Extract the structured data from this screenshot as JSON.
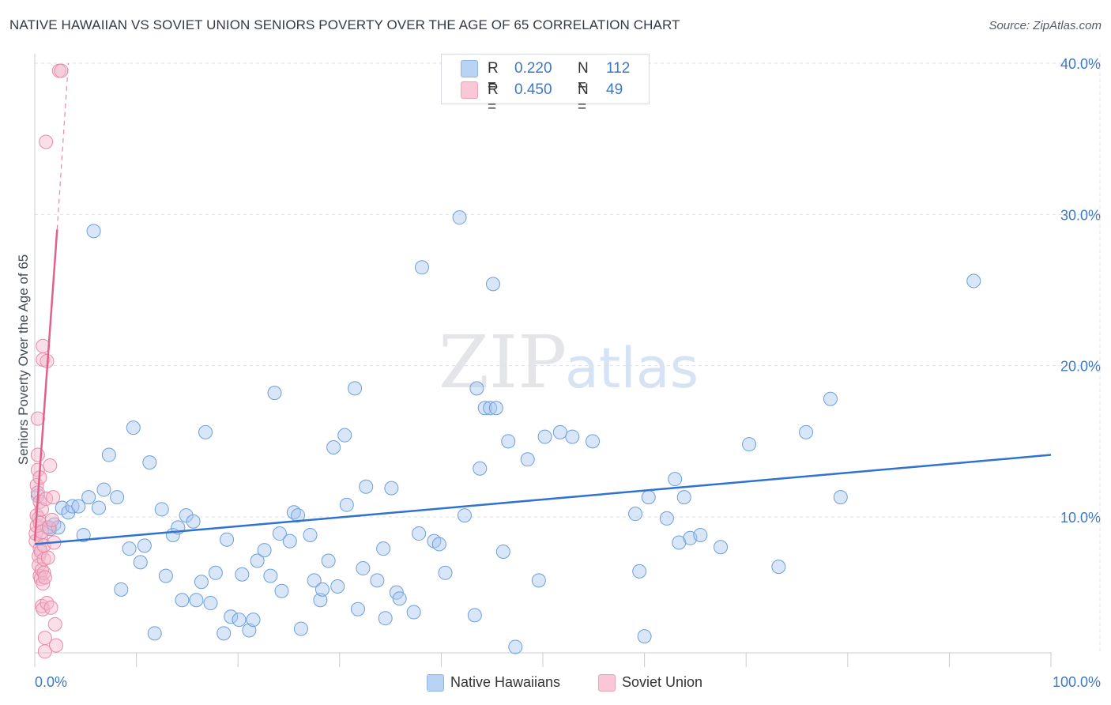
{
  "header": {
    "title": "NATIVE HAWAIIAN VS SOVIET UNION SENIORS POVERTY OVER THE AGE OF 65 CORRELATION CHART",
    "source": "Source: ZipAtlas.com"
  },
  "legend": {
    "rows": [
      {
        "r_label": "R =",
        "r_value": "0.220",
        "n_label": "N =",
        "n_value": "112"
      },
      {
        "r_label": "R =",
        "r_value": "0.450",
        "n_label": "N =",
        "n_value": "49"
      }
    ]
  },
  "colors": {
    "blue_fill": "#a9c8f0",
    "blue_stroke": "#6d9fdc",
    "blue_line": "#2f72cf",
    "pink_fill": "#f5b8cb",
    "pink_stroke": "#e88aa6",
    "pink_line": "#e0628b",
    "tick_text": "#3d78c7",
    "grid": "#dde1e6"
  },
  "chart_data": {
    "type": "scatter",
    "title": "NATIVE HAWAIIAN VS SOVIET UNION SENIORS POVERTY OVER THE AGE OF 65 CORRELATION CHART",
    "xlabel": "",
    "ylabel": "Seniors Poverty Over the Age of 65",
    "xlim": [
      0,
      100
    ],
    "ylim": [
      0,
      41.5
    ],
    "x_tick_labels": [
      "0.0%",
      "100.0%"
    ],
    "y_ticks": [
      10,
      20,
      30,
      40
    ],
    "y_tick_labels": [
      "10.0%",
      "20.0%",
      "30.0%",
      "40.0%"
    ],
    "grid": true,
    "legend_position": "bottom",
    "watermark": "ZIPatlas",
    "series": [
      {
        "name": "Native Hawaiians",
        "R": 0.22,
        "N": 112,
        "trend": {
          "x": [
            0,
            100
          ],
          "y": [
            8.2,
            14.1
          ]
        },
        "points": [
          [
            0.3,
            11.4
          ],
          [
            1.2,
            9.3
          ],
          [
            1.5,
            9.2
          ],
          [
            1.9,
            9.5
          ],
          [
            2.3,
            9.3
          ],
          [
            2.7,
            10.6
          ],
          [
            3.3,
            10.3
          ],
          [
            3.7,
            10.7
          ],
          [
            4.3,
            10.7
          ],
          [
            4.8,
            8.8
          ],
          [
            5.3,
            11.3
          ],
          [
            5.8,
            28.9
          ],
          [
            6.3,
            10.6
          ],
          [
            6.8,
            11.8
          ],
          [
            7.3,
            14.1
          ],
          [
            8.1,
            11.3
          ],
          [
            8.5,
            5.2
          ],
          [
            9.3,
            7.9
          ],
          [
            9.7,
            15.9
          ],
          [
            10.4,
            7.0
          ],
          [
            10.8,
            8.1
          ],
          [
            11.3,
            13.6
          ],
          [
            11.8,
            2.3
          ],
          [
            12.5,
            10.5
          ],
          [
            12.9,
            6.1
          ],
          [
            13.6,
            8.8
          ],
          [
            14.1,
            9.3
          ],
          [
            14.5,
            4.5
          ],
          [
            14.9,
            10.1
          ],
          [
            15.6,
            9.7
          ],
          [
            15.9,
            4.5
          ],
          [
            16.4,
            5.7
          ],
          [
            16.8,
            15.6
          ],
          [
            17.3,
            4.3
          ],
          [
            17.8,
            6.3
          ],
          [
            18.6,
            2.3
          ],
          [
            18.9,
            8.5
          ],
          [
            19.3,
            3.4
          ],
          [
            20.1,
            3.2
          ],
          [
            20.4,
            6.2
          ],
          [
            21.1,
            2.5
          ],
          [
            21.5,
            3.2
          ],
          [
            21.9,
            7.1
          ],
          [
            22.6,
            7.8
          ],
          [
            23.2,
            6.1
          ],
          [
            23.6,
            18.2
          ],
          [
            24.1,
            8.9
          ],
          [
            24.3,
            5.1
          ],
          [
            25.1,
            8.4
          ],
          [
            25.5,
            10.3
          ],
          [
            25.9,
            10.1
          ],
          [
            26.2,
            2.6
          ],
          [
            27.1,
            8.8
          ],
          [
            27.5,
            5.8
          ],
          [
            28.1,
            4.5
          ],
          [
            28.3,
            5.2
          ],
          [
            28.9,
            7.1
          ],
          [
            29.4,
            14.6
          ],
          [
            29.8,
            5.4
          ],
          [
            30.5,
            15.4
          ],
          [
            30.7,
            10.8
          ],
          [
            31.5,
            18.5
          ],
          [
            31.8,
            3.9
          ],
          [
            32.3,
            6.6
          ],
          [
            32.6,
            12.0
          ],
          [
            33.7,
            5.8
          ],
          [
            34.3,
            7.9
          ],
          [
            34.5,
            3.3
          ],
          [
            35.1,
            11.9
          ],
          [
            35.6,
            5.0
          ],
          [
            35.9,
            4.6
          ],
          [
            37.3,
            3.7
          ],
          [
            37.8,
            8.9
          ],
          [
            38.1,
            26.5
          ],
          [
            39.3,
            8.4
          ],
          [
            39.8,
            8.2
          ],
          [
            40.4,
            6.3
          ],
          [
            41.8,
            29.8
          ],
          [
            42.3,
            10.1
          ],
          [
            43.3,
            3.5
          ],
          [
            43.5,
            18.5
          ],
          [
            43.8,
            13.2
          ],
          [
            44.3,
            17.2
          ],
          [
            44.8,
            17.2
          ],
          [
            45.1,
            25.4
          ],
          [
            45.4,
            17.2
          ],
          [
            46.1,
            7.7
          ],
          [
            46.6,
            15.0
          ],
          [
            47.3,
            1.4
          ],
          [
            48.5,
            13.8
          ],
          [
            49.6,
            5.8
          ],
          [
            50.2,
            15.3
          ],
          [
            51.7,
            15.6
          ],
          [
            52.9,
            15.3
          ],
          [
            54.9,
            15.0
          ],
          [
            59.1,
            10.2
          ],
          [
            59.5,
            6.4
          ],
          [
            60.0,
            2.1
          ],
          [
            60.4,
            11.3
          ],
          [
            62.2,
            9.9
          ],
          [
            63.0,
            12.5
          ],
          [
            63.4,
            8.3
          ],
          [
            63.9,
            11.3
          ],
          [
            64.5,
            8.6
          ],
          [
            65.5,
            8.8
          ],
          [
            67.5,
            8.0
          ],
          [
            70.3,
            14.8
          ],
          [
            73.2,
            6.7
          ],
          [
            75.9,
            15.6
          ],
          [
            78.3,
            17.8
          ],
          [
            79.3,
            11.3
          ],
          [
            92.4,
            25.6
          ]
        ]
      },
      {
        "name": "Soviet Union",
        "R": 0.45,
        "N": 49,
        "trend": {
          "x": [
            0,
            2.2
          ],
          "y": [
            8.4,
            29.0
          ]
        },
        "trend_extension": {
          "x": [
            2.2,
            3.3
          ],
          "y": [
            29.0,
            40.0
          ]
        },
        "points": [
          [
            0.1,
            8.4
          ],
          [
            0.1,
            8.9
          ],
          [
            0.2,
            9.4
          ],
          [
            0.2,
            10.1
          ],
          [
            0.2,
            12.1
          ],
          [
            0.3,
            14.1
          ],
          [
            0.3,
            16.5
          ],
          [
            0.3,
            11.6
          ],
          [
            0.3,
            13.1
          ],
          [
            0.4,
            9.9
          ],
          [
            0.4,
            7.4
          ],
          [
            0.4,
            6.8
          ],
          [
            0.5,
            7.9
          ],
          [
            0.5,
            6.1
          ],
          [
            0.5,
            11.0
          ],
          [
            0.5,
            9.6
          ],
          [
            0.5,
            12.6
          ],
          [
            0.6,
            5.9
          ],
          [
            0.6,
            8.6
          ],
          [
            0.6,
            7.7
          ],
          [
            0.7,
            4.1
          ],
          [
            0.7,
            6.5
          ],
          [
            0.7,
            9.0
          ],
          [
            0.7,
            10.5
          ],
          [
            0.8,
            5.6
          ],
          [
            0.8,
            3.9
          ],
          [
            0.8,
            21.3
          ],
          [
            0.8,
            20.4
          ],
          [
            0.9,
            6.3
          ],
          [
            0.9,
            8.1
          ],
          [
            0.9,
            7.2
          ],
          [
            1.0,
            1.1
          ],
          [
            1.0,
            2.0
          ],
          [
            1.0,
            6.0
          ],
          [
            1.1,
            34.8
          ],
          [
            1.1,
            11.2
          ],
          [
            1.2,
            20.3
          ],
          [
            1.2,
            4.3
          ],
          [
            1.3,
            7.3
          ],
          [
            1.4,
            9.3
          ],
          [
            1.5,
            13.4
          ],
          [
            1.6,
            4.0
          ],
          [
            1.7,
            9.8
          ],
          [
            1.8,
            11.3
          ],
          [
            1.9,
            8.3
          ],
          [
            2.0,
            2.9
          ],
          [
            2.1,
            1.5
          ],
          [
            2.4,
            39.5
          ],
          [
            2.6,
            39.5
          ]
        ]
      }
    ]
  }
}
